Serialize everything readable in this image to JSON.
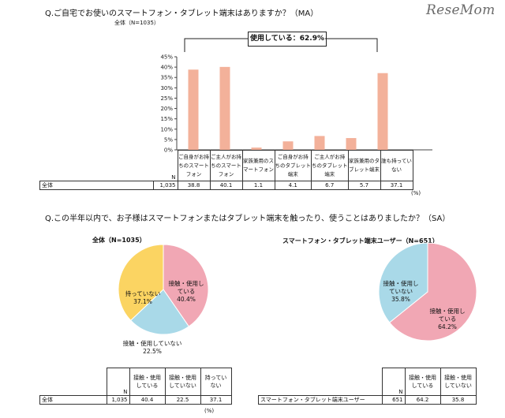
{
  "site_logo": "ReseMom",
  "q1": {
    "title": "Q.ご自宅でお使いのスマートフォン・タブレット端末はありますか？（MA）",
    "base_label": "全体（N=1035）",
    "callout": "使用している：62.9%",
    "n_header": "N",
    "row_label": "全体",
    "n_value": "1,035",
    "unit": "(%)"
  },
  "q2": {
    "title": "Q.この半年以内で、お子様はスマートフォンまたはタブレット端末を触ったり、使うことはありましたか？（SA）",
    "unit": "(%)"
  },
  "colors": {
    "bar": "#f3b19a",
    "pink": "#f1a7b4",
    "blue": "#a9d9e8",
    "yellow": "#fbd462"
  },
  "chart_data": [
    {
      "type": "bar",
      "title": "",
      "categories": [
        [
          "ご自身がお持",
          "ちのスマート",
          "フォン"
        ],
        [
          "ご主人がお持",
          "ちのスマート",
          "フォン"
        ],
        [
          "家族兼用のス",
          "マートフォン"
        ],
        [
          "ご自身がお持",
          "ちのタブレット",
          "端末"
        ],
        [
          "ご主人がお持",
          "ちのタブレット",
          "端末"
        ],
        [
          "家族兼用のタ",
          "ブレット端末"
        ],
        [
          "誰も持ってい",
          "ない"
        ]
      ],
      "values": [
        38.8,
        40.1,
        1.1,
        4.1,
        6.7,
        5.7,
        37.1
      ],
      "value_labels": [
        "38.8",
        "40.1",
        "1.1",
        "4.1",
        "6.7",
        "5.7",
        "37.1"
      ],
      "ylim": [
        0,
        45
      ],
      "yticks": [
        "0%",
        "5%",
        "10%",
        "15%",
        "20%",
        "25%",
        "30%",
        "35%",
        "40%",
        "45%"
      ],
      "grid": false
    },
    {
      "type": "pie",
      "title": "全体（N=1035）",
      "slices": [
        {
          "label": [
            "接触・使用し",
            "ている"
          ],
          "pct": "40.4%",
          "value": 40.4
        },
        {
          "label": [
            "接触・使用していない"
          ],
          "pct": "22.5%",
          "value": 22.5
        },
        {
          "label": [
            "持っていない"
          ],
          "pct": "37.1%",
          "value": 37.1
        }
      ]
    },
    {
      "type": "pie",
      "title": "スマートフォン・タブレット端末ユーザー（N=651）",
      "slices": [
        {
          "label": [
            "接触・使用し",
            "ている"
          ],
          "pct": "64.2%",
          "value": 64.2
        },
        {
          "label": [
            "接触・使用し",
            "ていない"
          ],
          "pct": "35.8%",
          "value": 35.8
        }
      ]
    }
  ],
  "table_left": {
    "headers": [
      [
        "N"
      ],
      [
        "接触・使用",
        "している"
      ],
      [
        "接触・使用",
        "していない"
      ],
      [
        "持ってい",
        "ない"
      ]
    ],
    "row_label": "全体",
    "cells": [
      "1,035",
      "40.4",
      "22.5",
      "37.1"
    ],
    "unit": "(%)"
  },
  "table_right": {
    "headers": [
      [
        "N"
      ],
      [
        "接触・使用",
        "している"
      ],
      [
        "接触・使用",
        "していない"
      ]
    ],
    "row_label": "スマートフォン・タブレット端末ユーザー",
    "cells": [
      "651",
      "64.2",
      "35.8"
    ]
  }
}
